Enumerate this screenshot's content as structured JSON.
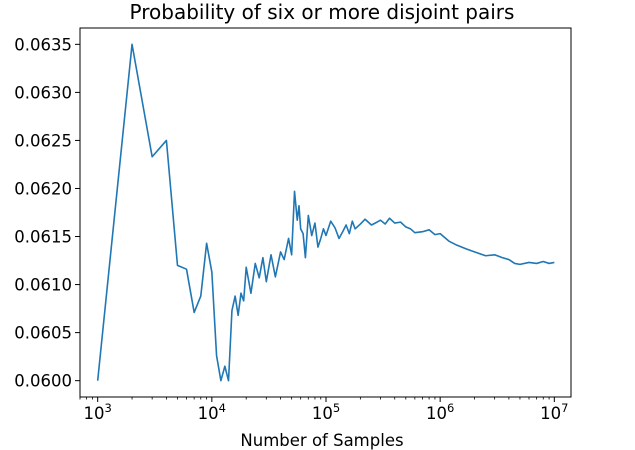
{
  "chart_data": {
    "type": "line",
    "title": "Probability of six or more disjoint pairs",
    "xlabel": "Number of Samples",
    "ylabel": "",
    "x_scale": "log",
    "xlim": [
      700,
      14000000
    ],
    "ylim": [
      0.05983,
      0.06367
    ],
    "x_ticks": [
      {
        "value": 1000,
        "base": "10",
        "exp": "3"
      },
      {
        "value": 10000,
        "base": "10",
        "exp": "4"
      },
      {
        "value": 100000,
        "base": "10",
        "exp": "5"
      },
      {
        "value": 1000000,
        "base": "10",
        "exp": "6"
      },
      {
        "value": 10000000,
        "base": "10",
        "exp": "7"
      }
    ],
    "y_ticks": [
      {
        "value": 0.06,
        "label": "0.0600"
      },
      {
        "value": 0.0605,
        "label": "0.0605"
      },
      {
        "value": 0.061,
        "label": "0.0610"
      },
      {
        "value": 0.0615,
        "label": "0.0615"
      },
      {
        "value": 0.062,
        "label": "0.0620"
      },
      {
        "value": 0.0625,
        "label": "0.0625"
      },
      {
        "value": 0.063,
        "label": "0.0630"
      },
      {
        "value": 0.0635,
        "label": "0.0635"
      }
    ],
    "grid": false,
    "line_color": "#1f77b4",
    "series": [
      {
        "x": [
          1000,
          2000,
          3000,
          4000,
          5000,
          6000,
          7000,
          8000,
          9000,
          10000,
          11000,
          12000,
          13000,
          14000,
          15000,
          16000,
          17000,
          18000,
          19000,
          20000,
          22000,
          24000,
          26000,
          28000,
          30000,
          33000,
          36000,
          40000,
          43000,
          47000,
          50000,
          53000,
          56000,
          58000,
          60000,
          63000,
          66000,
          70000,
          75000,
          80000,
          85000,
          90000,
          95000,
          100000,
          110000,
          120000,
          130000,
          140000,
          150000,
          160000,
          170000,
          180000,
          200000,
          220000,
          250000,
          280000,
          300000,
          330000,
          360000,
          400000,
          450000,
          500000,
          550000,
          600000,
          700000,
          800000,
          900000,
          1000000,
          1200000,
          1400000,
          1700000,
          2000000,
          2500000,
          3000000,
          3500000,
          4000000,
          4500000,
          5000000,
          6000000,
          7000000,
          8000000,
          9000000,
          10000000
        ],
        "y": [
          0.06,
          0.0635,
          0.06233,
          0.0625,
          0.0612,
          0.06116,
          0.06071,
          0.06088,
          0.06143,
          0.06113,
          0.06026,
          0.06,
          0.06015,
          0.06,
          0.06073,
          0.06088,
          0.06068,
          0.06091,
          0.06083,
          0.06118,
          0.06091,
          0.06122,
          0.06107,
          0.06128,
          0.06103,
          0.06131,
          0.06108,
          0.06134,
          0.06126,
          0.06148,
          0.06131,
          0.06197,
          0.06167,
          0.06182,
          0.06158,
          0.06153,
          0.06128,
          0.06172,
          0.06151,
          0.06164,
          0.06139,
          0.06148,
          0.06158,
          0.06151,
          0.06166,
          0.06159,
          0.06148,
          0.06155,
          0.06162,
          0.06153,
          0.06166,
          0.06158,
          0.06163,
          0.06168,
          0.06162,
          0.06165,
          0.06167,
          0.06163,
          0.06169,
          0.06164,
          0.06165,
          0.0616,
          0.06158,
          0.06154,
          0.06155,
          0.06157,
          0.06152,
          0.06153,
          0.06145,
          0.06141,
          0.06137,
          0.06134,
          0.0613,
          0.06131,
          0.06128,
          0.06126,
          0.06122,
          0.06121,
          0.06123,
          0.06122,
          0.06124,
          0.06122,
          0.06123
        ]
      }
    ]
  }
}
